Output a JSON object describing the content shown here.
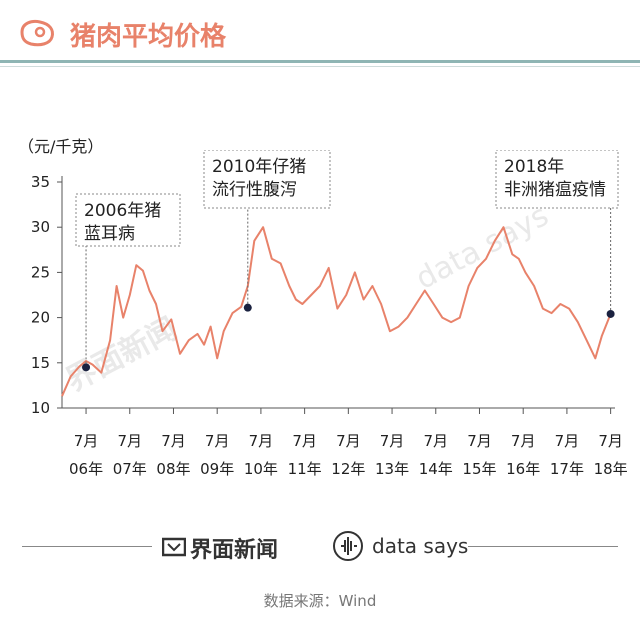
{
  "header": {
    "title": "猪肉平均价格"
  },
  "chart_data": {
    "type": "line",
    "unit_label": "（元/千克）",
    "ylim": [
      10,
      35
    ],
    "y_ticks": [
      "35",
      "30",
      "25",
      "20",
      "15",
      "10"
    ],
    "x_ticks_top": [
      "7月",
      "7月",
      "7月",
      "7月",
      "7月",
      "7月",
      "7月",
      "7月",
      "7月",
      "7月",
      "7月",
      "7月",
      "7月"
    ],
    "x_ticks_bottom": [
      "06年",
      "07年",
      "08年",
      "09年",
      "10年",
      "11年",
      "12年",
      "13年",
      "14年",
      "15年",
      "16年",
      "17年",
      "18年"
    ],
    "series": [
      {
        "color": "#e8826a",
        "x": [
          2006.0,
          2006.2,
          2006.4,
          2006.55,
          2006.7,
          2006.9,
          2007.1,
          2007.25,
          2007.4,
          2007.55,
          2007.7,
          2007.85,
          2008.0,
          2008.15,
          2008.3,
          2008.5,
          2008.7,
          2008.9,
          2009.1,
          2009.25,
          2009.4,
          2009.55,
          2009.7,
          2009.9,
          2010.1,
          2010.25,
          2010.4,
          2010.6,
          2010.8,
          2011.0,
          2011.2,
          2011.35,
          2011.5,
          2011.7,
          2011.9,
          2012.1,
          2012.3,
          2012.5,
          2012.7,
          2012.9,
          2013.1,
          2013.3,
          2013.5,
          2013.7,
          2013.9,
          2014.1,
          2014.3,
          2014.5,
          2014.7,
          2014.9,
          2015.1,
          2015.3,
          2015.5,
          2015.7,
          2015.9,
          2016.1,
          2016.3,
          2016.45,
          2016.6,
          2016.8,
          2017.0,
          2017.2,
          2017.4,
          2017.6,
          2017.8,
          2018.0,
          2018.2,
          2018.35,
          2018.55
        ],
        "y": [
          11.3,
          13.5,
          14.6,
          15.2,
          14.8,
          13.9,
          17.5,
          23.5,
          20.0,
          22.5,
          25.8,
          25.2,
          23.0,
          21.5,
          18.5,
          19.8,
          16.0,
          17.5,
          18.2,
          17.0,
          19.0,
          15.5,
          18.5,
          20.5,
          21.2,
          23.5,
          28.5,
          30.0,
          26.5,
          26.0,
          23.5,
          22.0,
          21.5,
          22.5,
          23.5,
          25.5,
          21.0,
          22.5,
          25.0,
          22.0,
          23.5,
          21.5,
          18.5,
          19.0,
          20.0,
          21.5,
          23.0,
          21.5,
          20.0,
          19.5,
          20.0,
          23.5,
          25.5,
          26.5,
          28.5,
          30.0,
          27.0,
          26.5,
          25.0,
          23.5,
          21.0,
          20.5,
          21.5,
          21.0,
          19.5,
          17.5,
          15.5,
          18.0,
          20.4
        ]
      }
    ],
    "annotations": [
      {
        "lines": [
          "2006年猪",
          "蓝耳病"
        ],
        "x": 2006.55,
        "y": 14.5
      },
      {
        "lines": [
          "2010年仔猪",
          "流行性腹泻"
        ],
        "x": 2010.25,
        "y": 21.1
      },
      {
        "lines": [
          "2018年",
          "非洲猪瘟疫情"
        ],
        "x": 2018.55,
        "y": 20.4
      }
    ]
  },
  "footer": {
    "brand": "界面新闻",
    "data_says": "data says",
    "source": "数据来源：Wind"
  },
  "colors": {
    "accent": "#e8826a",
    "rule": "#8fb5b4",
    "marker": "#1b2240"
  }
}
